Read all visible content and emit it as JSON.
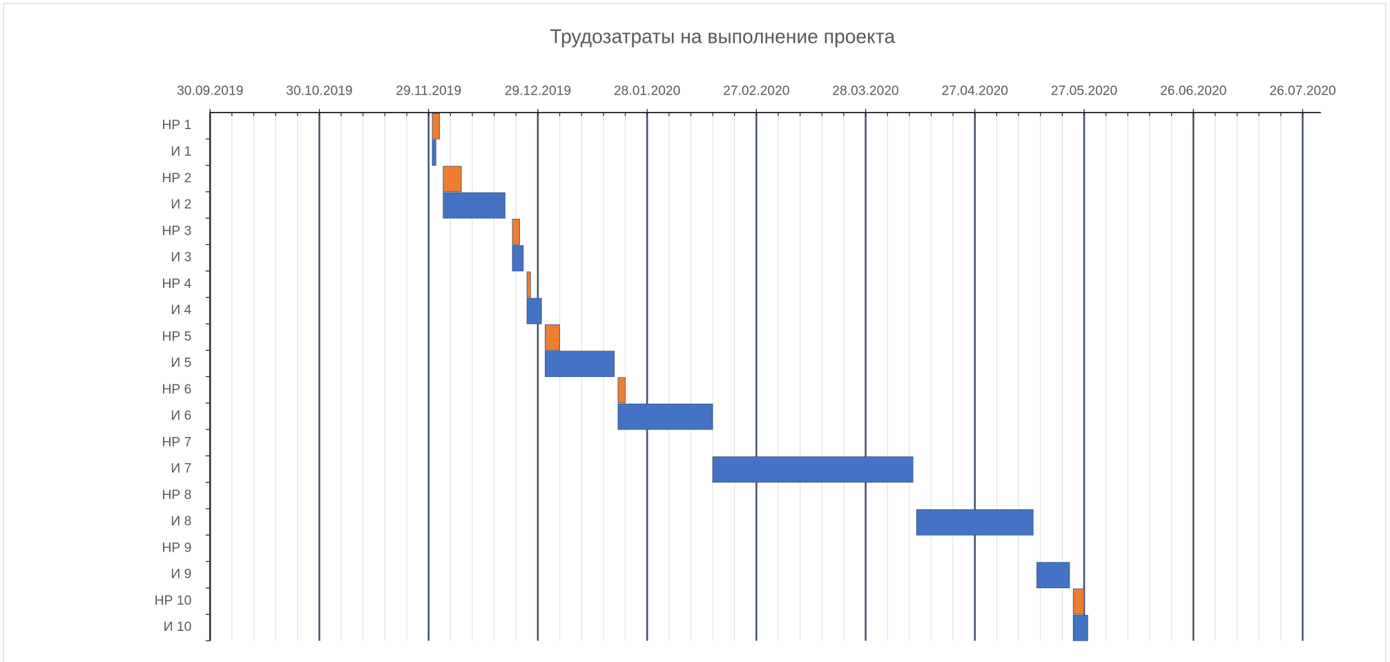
{
  "chart_data": {
    "type": "gantt",
    "title": "Трудозатраты на выполнение проекта",
    "categories": [
      "НР 1",
      "И 1",
      "НР 2",
      "И 2",
      "НР 3",
      "И 3",
      "НР 4",
      "И 4",
      "НР 5",
      "И 5",
      "НР 6",
      "И 6",
      "НР 7",
      "И 7",
      "НР 8",
      "И 8",
      "НР 9",
      "И 9",
      "НР 10",
      "И 10"
    ],
    "start": [
      "2019-11-30",
      "2019-11-30",
      "2019-12-03",
      "2019-12-03",
      "2019-12-22",
      "2019-12-22",
      "2019-12-26",
      "2019-12-26",
      "2019-12-31",
      "2019-12-31",
      "2020-01-20",
      "2020-01-20",
      null,
      "2020-02-15",
      null,
      "2020-04-11",
      null,
      "2020-05-14",
      "2020-05-24",
      "2020-05-24"
    ],
    "duration": [
      2,
      1,
      5,
      17,
      2,
      3,
      1,
      4,
      4,
      19,
      2,
      26,
      null,
      55,
      null,
      32,
      null,
      9,
      3,
      4
    ],
    "bar_colors": [
      "#ED7D31",
      "#4472C4",
      "#ED7D31",
      "#4472C4",
      "#ED7D31",
      "#4472C4",
      "#ED7D31",
      "#4472C4",
      "#ED7D31",
      "#4472C4",
      "#ED7D31",
      "#4472C4",
      "#ED7D31",
      "#4472C4",
      "#ED7D31",
      "#4472C4",
      "#ED7D31",
      "#4472C4",
      "#ED7D31",
      "#4472C4"
    ],
    "xlim": [
      "2019-09-30",
      "2020-07-31"
    ],
    "xticks": [
      {
        "value": "2019-09-30",
        "label": "30.09.2019"
      },
      {
        "value": "2019-10-30",
        "label": "30.10.2019"
      },
      {
        "value": "2019-11-29",
        "label": "29.11.2019"
      },
      {
        "value": "2019-12-29",
        "label": "29.12.2019"
      },
      {
        "value": "2020-01-28",
        "label": "28.01.2020"
      },
      {
        "value": "2020-02-27",
        "label": "27.02.2020"
      },
      {
        "value": "2020-03-28",
        "label": "28.03.2020"
      },
      {
        "value": "2020-04-27",
        "label": "27.04.2020"
      },
      {
        "value": "2020-05-27",
        "label": "27.05.2020"
      },
      {
        "value": "2020-06-26",
        "label": "26.06.2020"
      },
      {
        "value": "2020-07-26",
        "label": "26.07.2020"
      }
    ],
    "grid": true,
    "minor_grid_days": 6
  }
}
